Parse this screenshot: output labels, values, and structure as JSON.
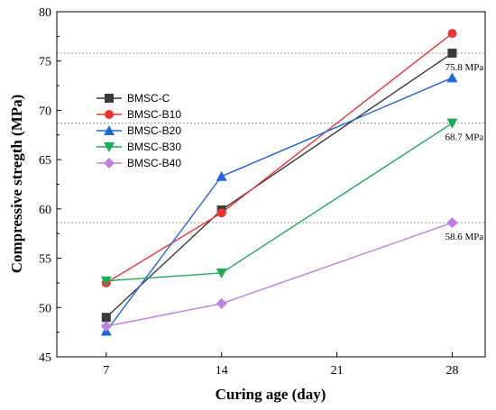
{
  "chart_data": {
    "type": "line",
    "title": "",
    "xlabel": "Curing age (day)",
    "ylabel": "Compressive stregth (MPa)",
    "x": [
      7,
      14,
      28
    ],
    "xlim": [
      4,
      30
    ],
    "ylim": [
      45,
      80
    ],
    "xticks": [
      7,
      14,
      21,
      28
    ],
    "yticks": [
      45,
      50,
      55,
      60,
      65,
      70,
      75,
      80
    ],
    "grid": false,
    "legend_position": "upper-left",
    "series": [
      {
        "name": "BMSC-C",
        "values": [
          49.0,
          59.9,
          75.8
        ],
        "color": "#3a3a3a",
        "marker": "square"
      },
      {
        "name": "BMSC-B10",
        "values": [
          52.5,
          59.6,
          77.8
        ],
        "color": "#ee3333",
        "marker": "circle"
      },
      {
        "name": "BMSC-B20",
        "values": [
          47.6,
          63.3,
          73.3
        ],
        "color": "#2266dd",
        "marker": "triangle-up"
      },
      {
        "name": "BMSC-B30",
        "values": [
          52.7,
          53.5,
          68.7
        ],
        "color": "#1faa5a",
        "marker": "triangle-down"
      },
      {
        "name": "BMSC-B40",
        "values": [
          48.1,
          50.4,
          58.6
        ],
        "color": "#c07ee0",
        "marker": "diamond"
      }
    ],
    "reference_lines": [
      {
        "y": 75.8,
        "label": "75.8 MPa"
      },
      {
        "y": 68.7,
        "label": "68.7 MPa"
      },
      {
        "y": 58.6,
        "label": "58.6 MPa"
      }
    ]
  }
}
